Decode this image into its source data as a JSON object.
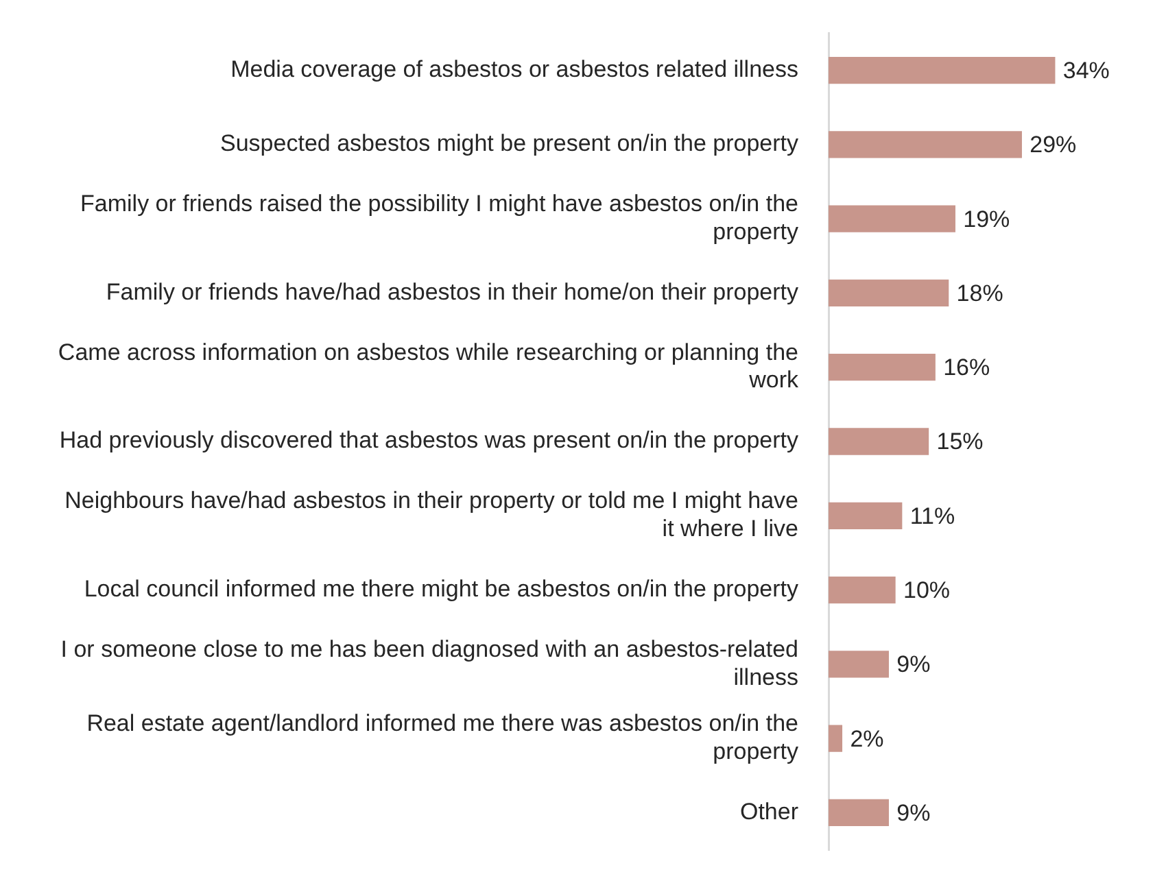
{
  "chart_data": {
    "type": "bar",
    "orientation": "horizontal",
    "categories": [
      "Media coverage of asbestos or asbestos related illness",
      "Suspected asbestos might be present on/in the property",
      "Family or friends raised the possibility I might have asbestos on/in the property",
      "Family or friends have/had asbestos in their home/on their property",
      "Came across information on asbestos while researching or planning the work",
      "Had previously discovered that asbestos was present on/in the property",
      "Neighbours have/had asbestos in their property or told me I might have it where I live",
      "Local council informed me there might be asbestos on/in the property",
      "I or someone close to me has been diagnosed with an asbestos-related illness",
      "Real estate agent/landlord informed me there was asbestos on/in the property",
      "Other"
    ],
    "values": [
      34,
      29,
      19,
      18,
      16,
      15,
      11,
      10,
      9,
      2,
      9
    ],
    "value_labels": [
      "34%",
      "29%",
      "19%",
      "18%",
      "16%",
      "15%",
      "11%",
      "10%",
      "9%",
      "2%",
      "9%"
    ],
    "color": "#c8968c",
    "legend": false,
    "grid": false
  }
}
